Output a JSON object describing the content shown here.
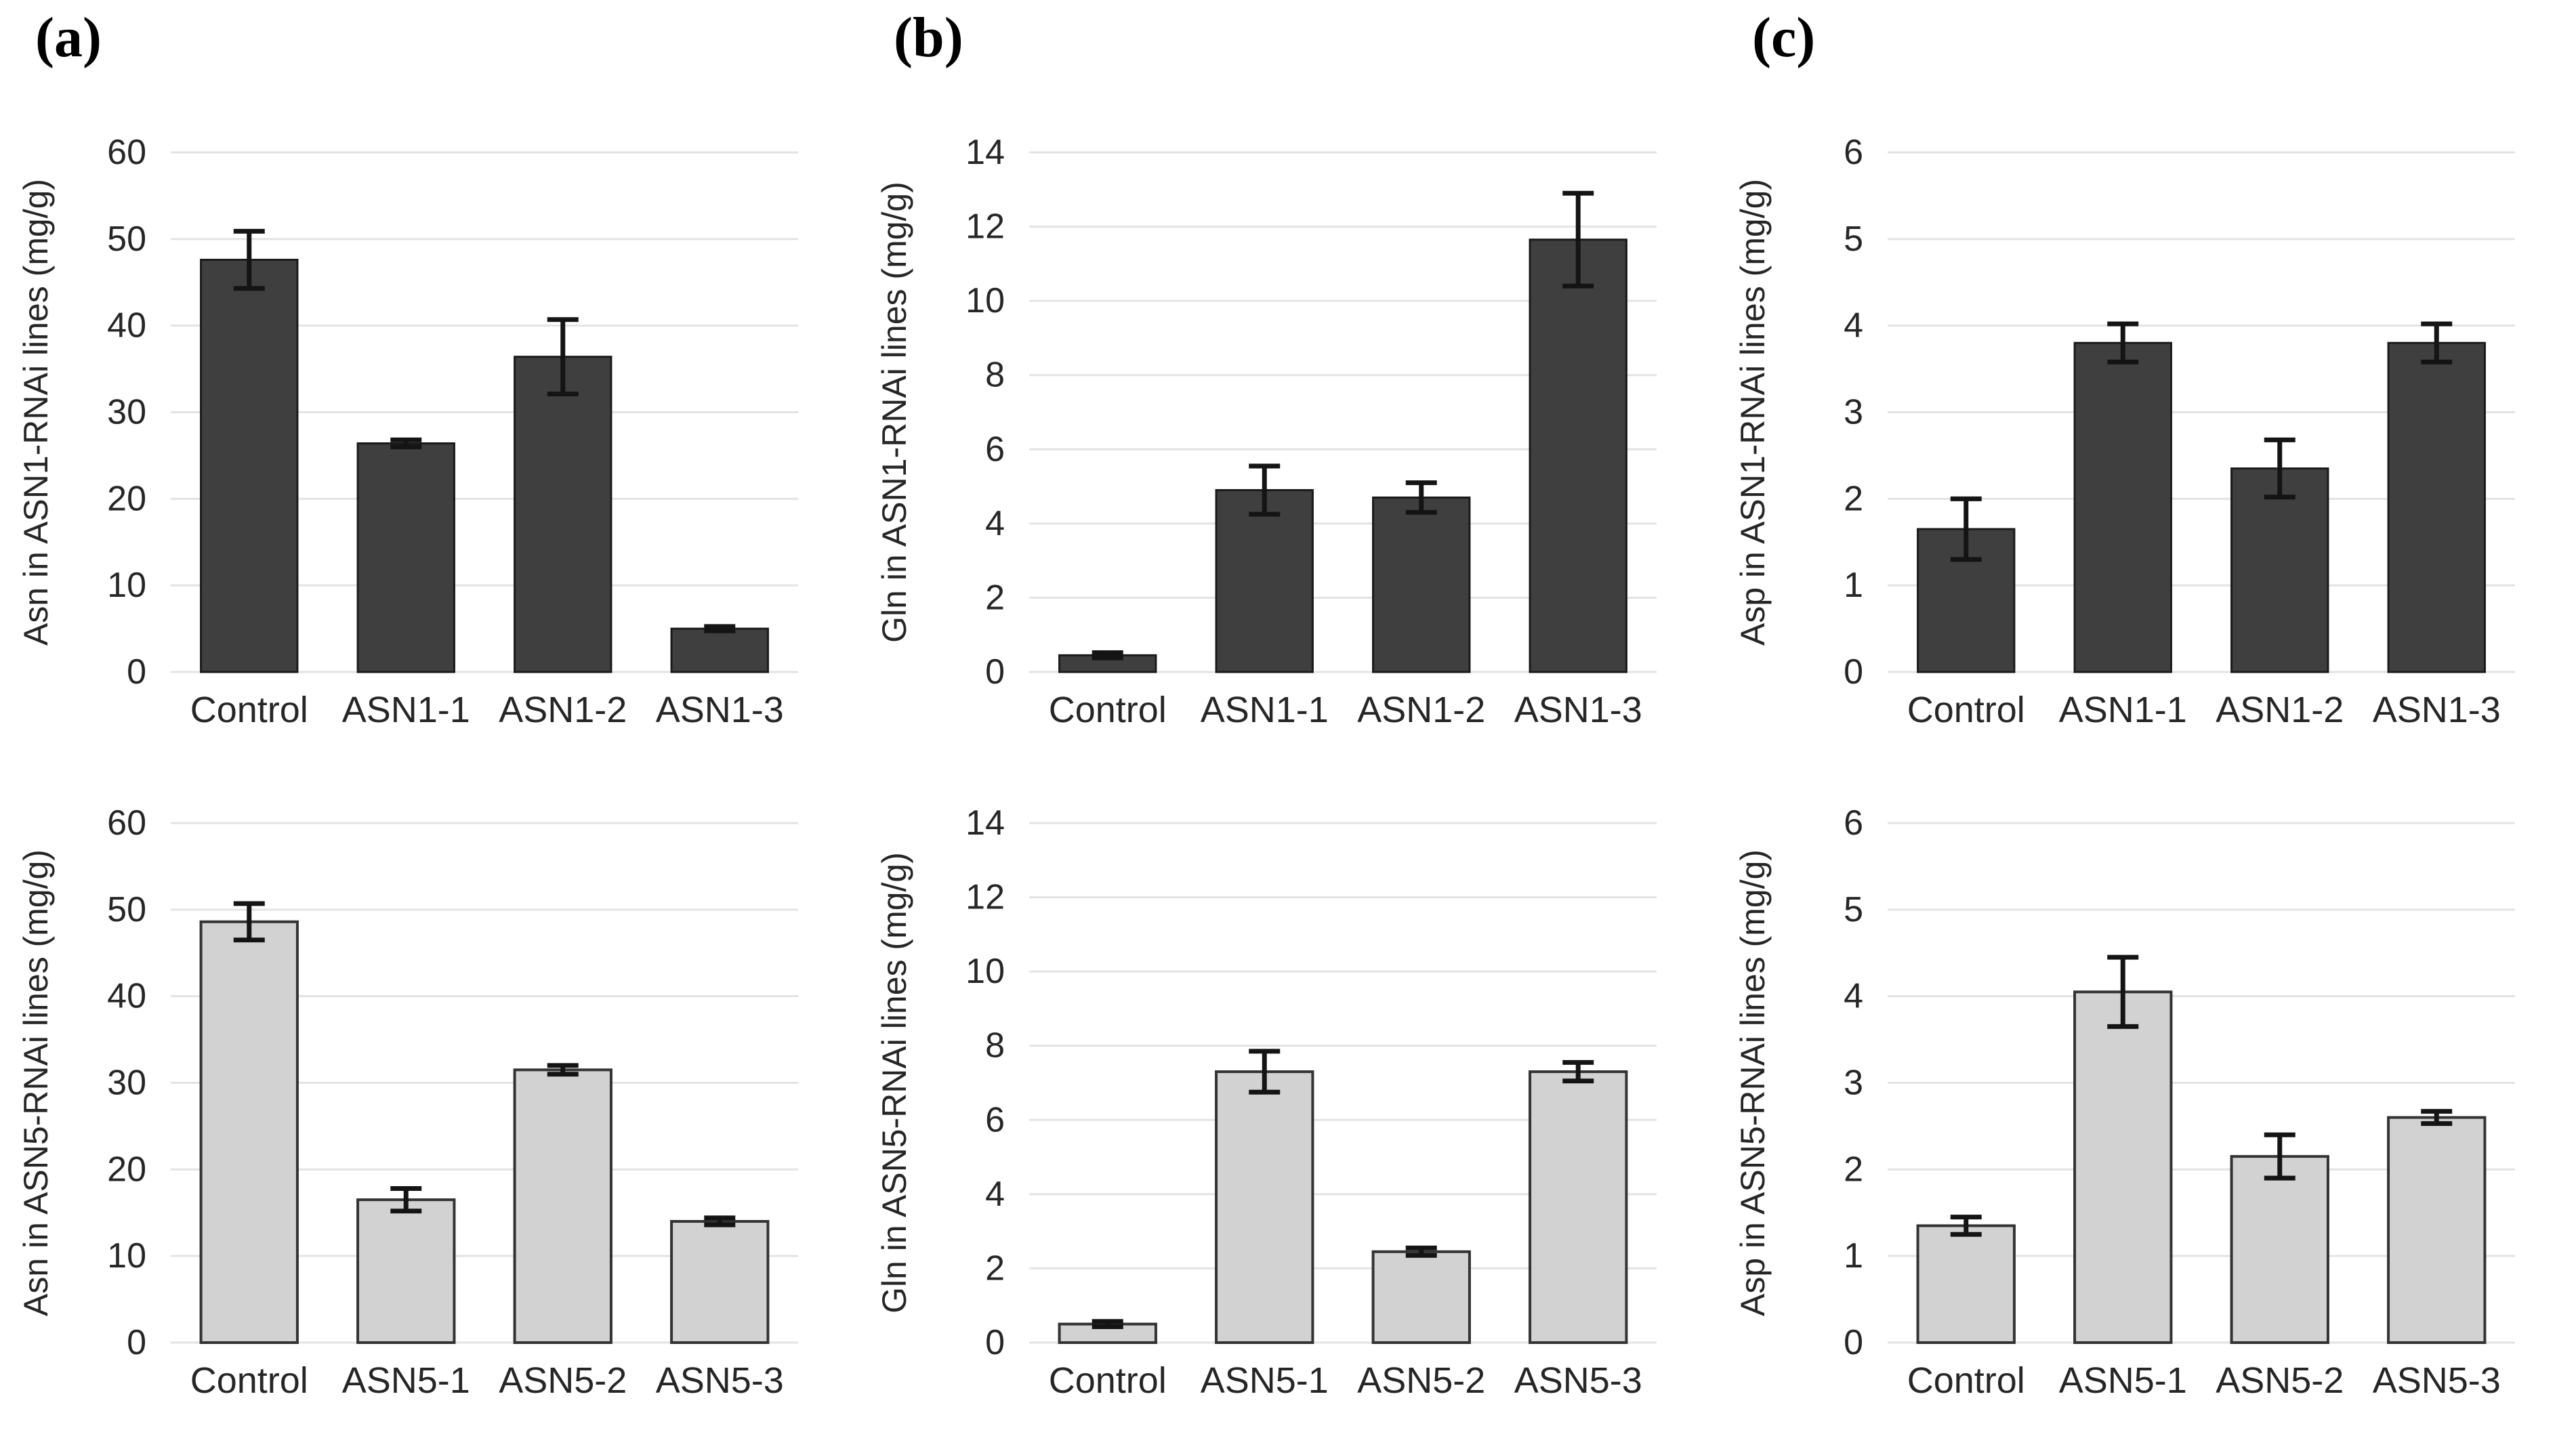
{
  "figure": {
    "panels": [
      {
        "label": "(a)"
      },
      {
        "label": "(b)"
      },
      {
        "label": "(c)"
      }
    ]
  },
  "colors": {
    "gridline": "#e3e3e3",
    "error_bar": "#141414",
    "text": "#262626",
    "background": "#ffffff"
  },
  "styles": {
    "dark": {
      "fill": "#3f3f3f",
      "stroke": "#1a1a1a",
      "sw": 3
    },
    "light": {
      "fill": "#d2d2d2",
      "stroke": "#333333",
      "sw": 4
    }
  },
  "chart_data": [
    {
      "id": "asn-in-asn1",
      "type": "bar",
      "panel": "a",
      "position": "top",
      "title": "",
      "xlabel": "",
      "ylabel": "Asn in ASN1-RNAi lines (mg/g)",
      "ylim": [
        0,
        60
      ],
      "ystep": 10,
      "grid": true,
      "legend": "none",
      "bar_style": "dark",
      "categories": [
        "Control",
        "ASN1-1",
        "ASN1-2",
        "ASN1-3"
      ],
      "values": [
        47.6,
        26.4,
        36.4,
        5.0
      ],
      "errors": [
        3.3,
        0.4,
        4.3,
        0.25
      ]
    },
    {
      "id": "asn-in-asn5",
      "type": "bar",
      "panel": "a",
      "position": "bottom",
      "title": "",
      "xlabel": "",
      "ylabel": "Asn in ASN5-RNAi lines (mg/g)",
      "ylim": [
        0,
        60
      ],
      "ystep": 10,
      "grid": true,
      "legend": "none",
      "bar_style": "light",
      "categories": [
        "Control",
        "ASN5-1",
        "ASN5-2",
        "ASN5-3"
      ],
      "values": [
        48.6,
        16.5,
        31.5,
        14.0
      ],
      "errors": [
        2.1,
        1.3,
        0.5,
        0.4
      ]
    },
    {
      "id": "gln-in-asn1",
      "type": "bar",
      "panel": "b",
      "position": "top",
      "title": "",
      "xlabel": "",
      "ylabel": "Gln in ASN1-RNAi lines (mg/g)",
      "ylim": [
        0,
        14
      ],
      "ystep": 2,
      "grid": true,
      "legend": "none",
      "bar_style": "dark",
      "categories": [
        "Control",
        "ASN1-1",
        "ASN1-2",
        "ASN1-3"
      ],
      "values": [
        0.45,
        4.9,
        4.7,
        11.65
      ],
      "errors": [
        0.07,
        0.65,
        0.4,
        1.25
      ]
    },
    {
      "id": "gln-in-asn5",
      "type": "bar",
      "panel": "b",
      "position": "bottom",
      "title": "",
      "xlabel": "",
      "ylabel": "Gln in ASN5-RNAi lines (mg/g)",
      "ylim": [
        0,
        14
      ],
      "ystep": 2,
      "grid": true,
      "legend": "none",
      "bar_style": "light",
      "categories": [
        "Control",
        "ASN5-1",
        "ASN5-2",
        "ASN5-3"
      ],
      "values": [
        0.5,
        7.3,
        2.45,
        7.3
      ],
      "errors": [
        0.07,
        0.55,
        0.1,
        0.25
      ]
    },
    {
      "id": "asp-in-asn1",
      "type": "bar",
      "panel": "c",
      "position": "top",
      "title": "",
      "xlabel": "",
      "ylabel": "Asp in ASN1-RNAi lines (mg/g)",
      "ylim": [
        0,
        6
      ],
      "ystep": 1,
      "grid": true,
      "legend": "none",
      "bar_style": "dark",
      "categories": [
        "Control",
        "ASN1-1",
        "ASN1-2",
        "ASN1-3"
      ],
      "values": [
        1.65,
        3.8,
        2.35,
        3.8
      ],
      "errors": [
        0.35,
        0.22,
        0.33,
        0.22
      ]
    },
    {
      "id": "asp-in-asn5",
      "type": "bar",
      "panel": "c",
      "position": "bottom",
      "title": "",
      "xlabel": "",
      "ylabel": "Asp in ASN5-RNAi lines (mg/g)",
      "ylim": [
        0,
        6
      ],
      "ystep": 1,
      "grid": true,
      "legend": "none",
      "bar_style": "light",
      "categories": [
        "Control",
        "ASN5-1",
        "ASN5-2",
        "ASN5-3"
      ],
      "values": [
        1.35,
        4.05,
        2.15,
        2.6
      ],
      "errors": [
        0.1,
        0.4,
        0.25,
        0.07
      ]
    }
  ]
}
